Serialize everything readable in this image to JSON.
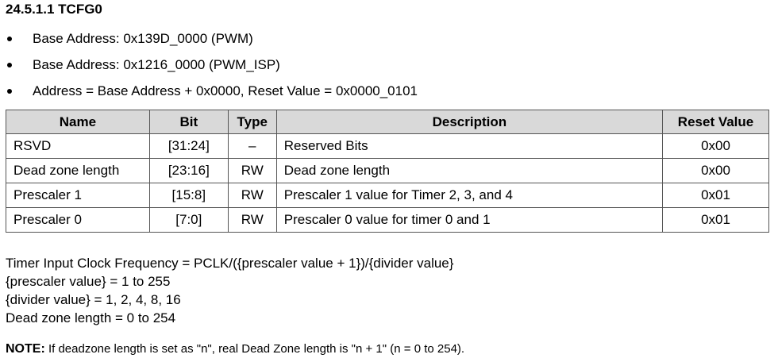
{
  "section_title": "24.5.1.1 TCFG0",
  "bullets": [
    "Base Address: 0x139D_0000 (PWM)",
    "Base Address: 0x1216_0000 (PWM_ISP)",
    "Address = Base Address + 0x0000, Reset Value = 0x0000_0101"
  ],
  "table": {
    "headers": [
      "Name",
      "Bit",
      "Type",
      "Description",
      "Reset Value"
    ],
    "rows": [
      [
        "RSVD",
        "[31:24]",
        "–",
        "Reserved Bits",
        "0x00"
      ],
      [
        "Dead zone length",
        "[23:16]",
        "RW",
        "Dead zone length",
        "0x00"
      ],
      [
        "Prescaler 1",
        "[15:8]",
        "RW",
        "Prescaler 1 value for Timer 2, 3, and 4",
        "0x01"
      ],
      [
        "Prescaler 0",
        "[7:0]",
        "RW",
        "Prescaler 0 value for timer 0 and 1",
        "0x01"
      ]
    ]
  },
  "formula_lines": [
    "Timer Input Clock Frequency = PCLK/({prescaler value + 1})/{divider value}",
    "{prescaler value} = 1 to 255",
    "{divider value} = 1, 2, 4, 8, 16",
    "Dead zone length = 0 to 254"
  ],
  "note": {
    "label": "NOTE:",
    "text": " If deadzone length is set as \"n\", real Dead Zone length is \"n + 1\" (n = 0 to 254)."
  }
}
